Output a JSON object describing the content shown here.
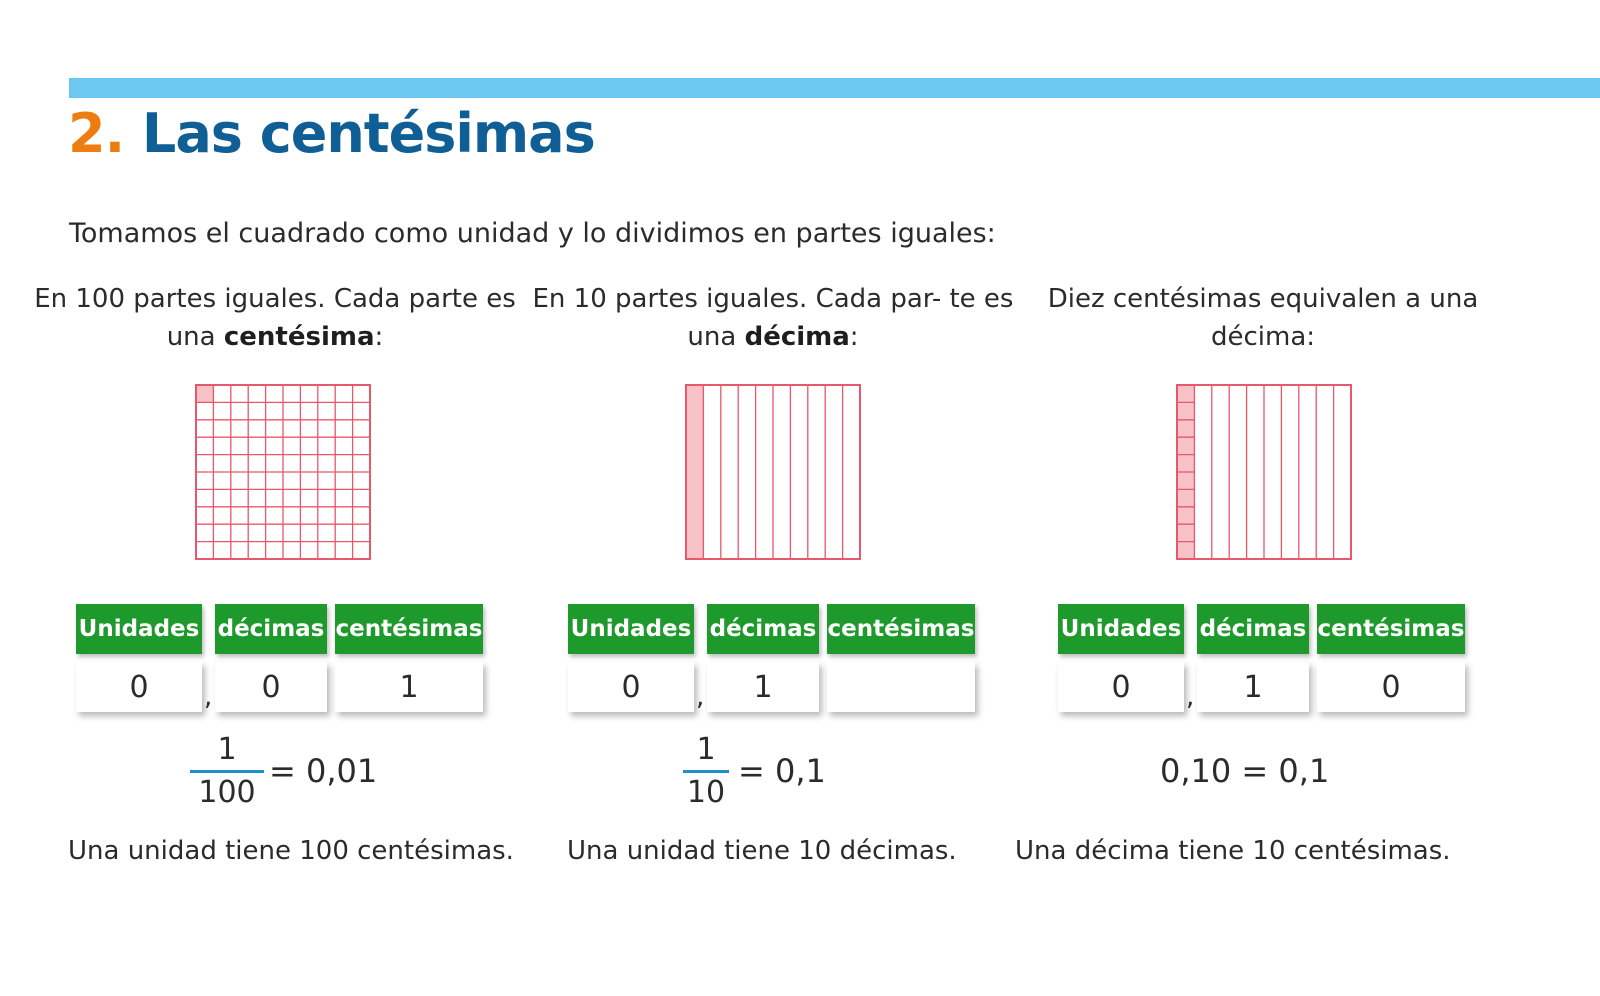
{
  "section": {
    "number": "2.",
    "title": "Las centésimas",
    "intro": "Tomamos el cuadrado como unidad y lo dividimos en partes iguales:"
  },
  "colors": {
    "accent_bar": "#6cc8f0",
    "number": "#ee7d11",
    "title": "#0f5f96",
    "table_header": "#1e9a2c",
    "grid_line": "#e8576a",
    "grid_fill": "#f7c2c8",
    "fraction_bar": "#1f8fd0"
  },
  "table_headers": {
    "units": "Unidades",
    "tenths": "décimas",
    "hundredths": "centésimas"
  },
  "columns": [
    {
      "caption_pre": "En 100 partes iguales. Cada parte es una ",
      "caption_bold": "centésima",
      "caption_post": ":",
      "grid_type": "hundredths-one-shaded",
      "values": {
        "units": "0",
        "comma": ",",
        "tenths": "0",
        "hundredths": "1"
      },
      "fraction": {
        "numerator": "1",
        "denominator": "100"
      },
      "equation": "= 0,01",
      "footer": "Una unidad tiene 100 centésimas."
    },
    {
      "caption_pre": "En 10 partes iguales. Cada par- te es una ",
      "caption_bold": "décima",
      "caption_post": ":",
      "grid_type": "tenths-one-shaded",
      "values": {
        "units": "0",
        "comma": ",",
        "tenths": "1",
        "hundredths": ""
      },
      "fraction": {
        "numerator": "1",
        "denominator": "10"
      },
      "equation": "= 0,1",
      "footer": "Una unidad tiene 10 décimas."
    },
    {
      "caption_pre": "Diez centésimas equivalen a una décima:",
      "caption_bold": "",
      "caption_post": "",
      "grid_type": "tenth-split-into-hundredths",
      "values": {
        "units": "0",
        "comma": ",",
        "tenths": "1",
        "hundredths": "0"
      },
      "equation": "0,10 = 0,1",
      "footer": "Una décima tiene 10 centésimas."
    }
  ]
}
